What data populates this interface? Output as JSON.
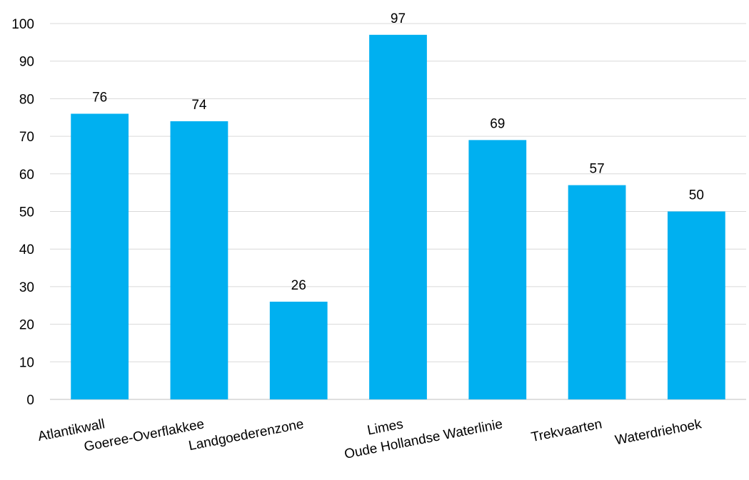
{
  "chart_data": {
    "type": "bar",
    "title": "",
    "xlabel": "",
    "ylabel": "",
    "categories": [
      "Atlantikwall",
      "Goeree-Overflakkee",
      "Landgoederenzone",
      "Limes",
      "Oude Hollandse Waterlinie",
      "Trekvaarten",
      "Waterdriehoek"
    ],
    "values": [
      76,
      74,
      26,
      97,
      69,
      57,
      50
    ],
    "ylim": [
      0,
      100
    ],
    "yticks": [
      0,
      10,
      20,
      30,
      40,
      50,
      60,
      70,
      80,
      90,
      100
    ],
    "grid": true,
    "legend": "none",
    "bar_color": "#00b0f0",
    "data_labels": true
  }
}
